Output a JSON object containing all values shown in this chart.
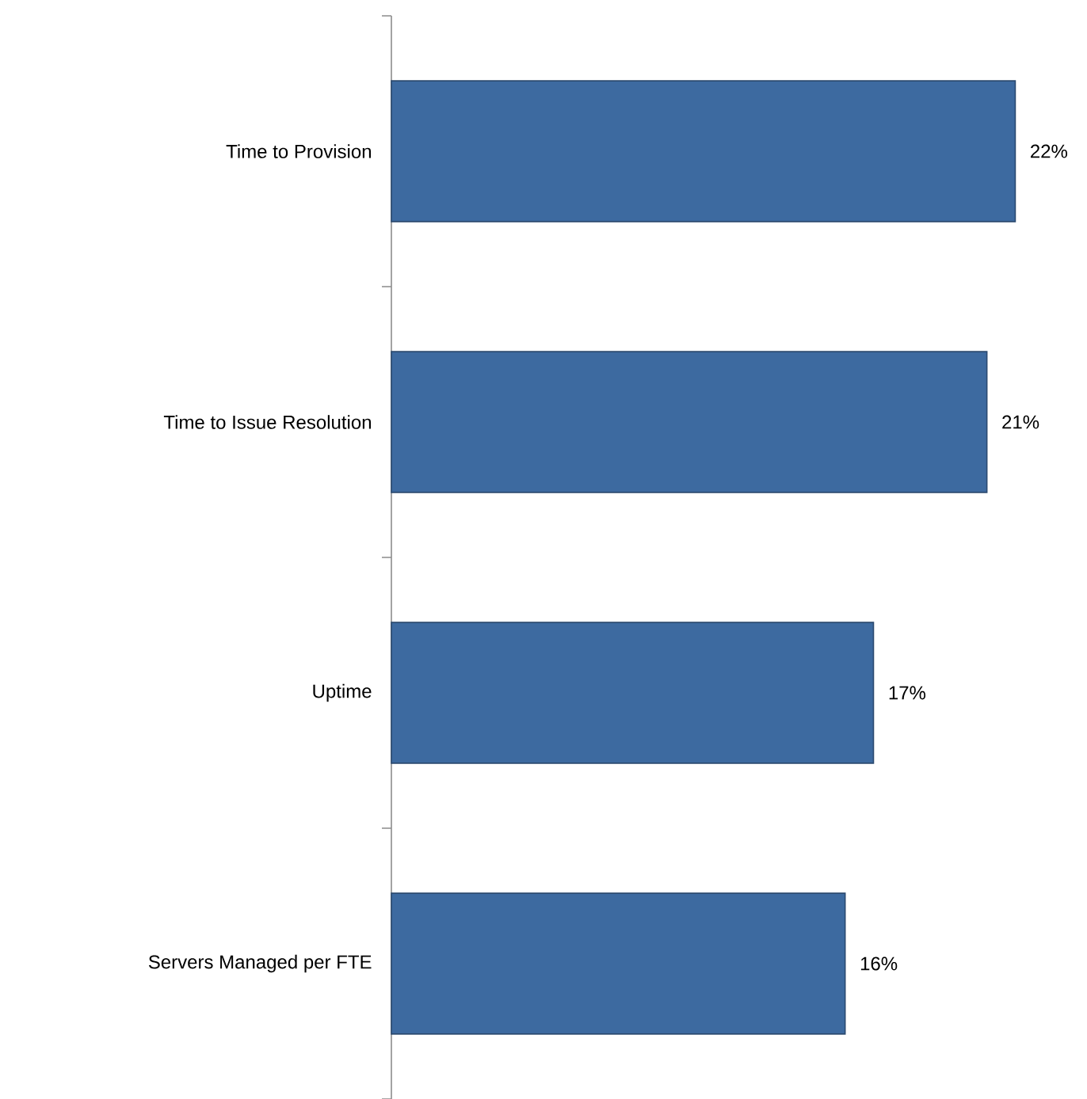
{
  "chart_data": {
    "type": "bar",
    "orientation": "horizontal",
    "categories": [
      "Time to Provision",
      "Time to Issue Resolution",
      "Uptime",
      "Servers Managed per FTE"
    ],
    "values": [
      22,
      21,
      17,
      16
    ],
    "value_labels": [
      "22%",
      "21%",
      "17%",
      "16%"
    ],
    "color": "#3d6aa0"
  }
}
